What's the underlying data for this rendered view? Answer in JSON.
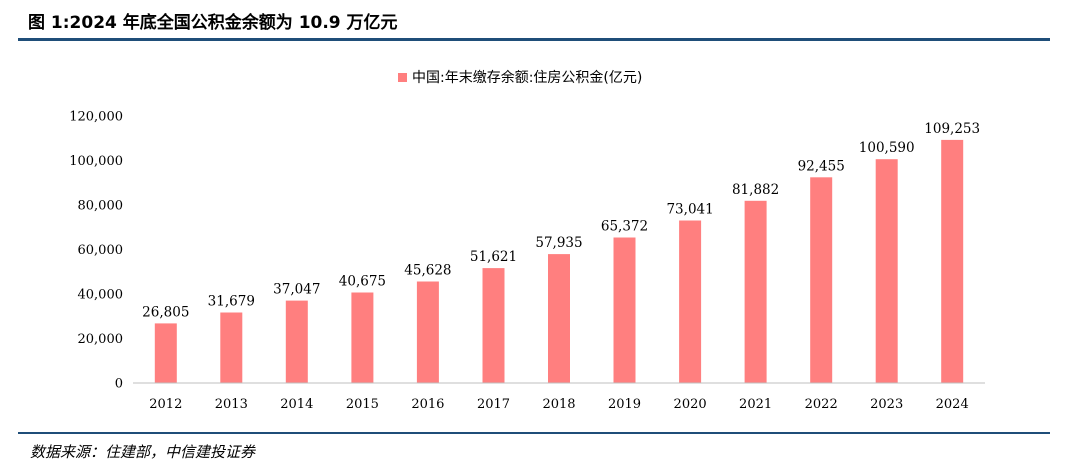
{
  "header": {
    "title": "图 1:2024 年底全国公积金余额为 10.9 万亿元"
  },
  "footer": {
    "source": "数据来源：住建部，中信建投证券"
  },
  "colors": {
    "bar": "#ff7f7f",
    "rule": "#1f4e79",
    "axis": "#bfbfbf"
  },
  "chart_data": {
    "type": "bar",
    "title": "",
    "xlabel": "",
    "ylabel": "",
    "legend": {
      "placement": "top-center"
    },
    "grid": false,
    "ylim": [
      0,
      120000
    ],
    "yticks": [
      "0",
      "20,000",
      "40,000",
      "60,000",
      "80,000",
      "100,000",
      "120,000"
    ],
    "categories": [
      "2012",
      "2013",
      "2014",
      "2015",
      "2016",
      "2017",
      "2018",
      "2019",
      "2020",
      "2021",
      "2022",
      "2023",
      "2024"
    ],
    "series": [
      {
        "name": "中国:年末缴存余额:住房公积金(亿元)",
        "values": [
          26805,
          31679,
          37047,
          40675,
          45628,
          51621,
          57935,
          65372,
          73041,
          81882,
          92455,
          100590,
          109253
        ],
        "labels": [
          "26,805",
          "31,679",
          "37,047",
          "40,675",
          "45,628",
          "51,621",
          "57,935",
          "65,372",
          "73,041",
          "81,882",
          "92,455",
          "100,590",
          "109,253"
        ]
      }
    ]
  }
}
